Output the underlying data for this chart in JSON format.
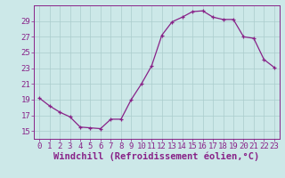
{
  "x": [
    0,
    1,
    2,
    3,
    4,
    5,
    6,
    7,
    8,
    9,
    10,
    11,
    12,
    13,
    14,
    15,
    16,
    17,
    18,
    19,
    20,
    21,
    22,
    23
  ],
  "y": [
    19.2,
    18.2,
    17.4,
    16.8,
    15.5,
    15.4,
    15.3,
    16.5,
    16.5,
    19.0,
    21.0,
    23.3,
    27.2,
    28.9,
    29.5,
    30.2,
    30.3,
    29.5,
    29.2,
    29.2,
    27.0,
    26.8,
    24.1,
    23.1
  ],
  "line_color": "#882288",
  "marker": "P",
  "marker_color": "#882288",
  "bg_color": "#cce8e8",
  "grid_color": "#aacccc",
  "xlabel": "Windchill (Refroidissement éolien,°C)",
  "xlabel_color": "#882288",
  "tick_color": "#882288",
  "spine_color": "#882288",
  "ylim": [
    14.0,
    31.0
  ],
  "yticks": [
    15,
    17,
    19,
    21,
    23,
    25,
    27,
    29
  ],
  "xlim": [
    -0.5,
    23.5
  ],
  "xticks": [
    0,
    1,
    2,
    3,
    4,
    5,
    6,
    7,
    8,
    9,
    10,
    11,
    12,
    13,
    14,
    15,
    16,
    17,
    18,
    19,
    20,
    21,
    22,
    23
  ],
  "tick_fontsize": 6.5,
  "xlabel_fontsize": 7.5,
  "marker_size": 3.0,
  "linewidth": 0.9
}
